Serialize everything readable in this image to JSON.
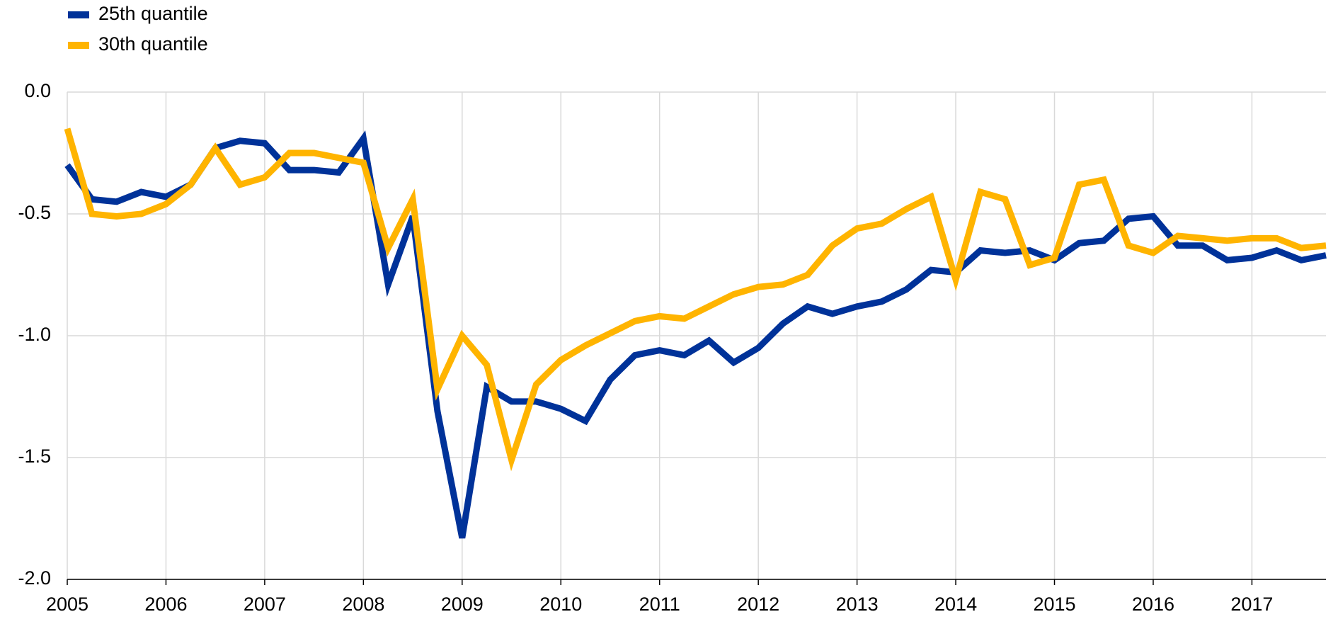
{
  "chart_data": {
    "type": "line",
    "x": [
      2005,
      2005.25,
      2005.5,
      2005.75,
      2006,
      2006.25,
      2006.5,
      2006.75,
      2007,
      2007.25,
      2007.5,
      2007.75,
      2008,
      2008.25,
      2008.5,
      2008.75,
      2009,
      2009.25,
      2009.5,
      2009.75,
      2010,
      2010.25,
      2010.5,
      2010.75,
      2011,
      2011.25,
      2011.5,
      2011.75,
      2012,
      2012.25,
      2012.5,
      2012.75,
      2013,
      2013.25,
      2013.5,
      2013.75,
      2014,
      2014.25,
      2014.5,
      2014.75,
      2015,
      2015.25,
      2015.5,
      2015.75,
      2016,
      2016.25,
      2016.5,
      2016.75,
      2017,
      2017.25,
      2017.5,
      2017.75
    ],
    "series": [
      {
        "name": "25th quantile",
        "color": "#003299",
        "values": [
          -0.3,
          -0.44,
          -0.45,
          -0.41,
          -0.43,
          -0.38,
          -0.23,
          -0.2,
          -0.21,
          -0.32,
          -0.32,
          -0.33,
          -0.19,
          -0.79,
          -0.51,
          -1.31,
          -1.83,
          -1.21,
          -1.27,
          -1.27,
          -1.3,
          -1.35,
          -1.18,
          -1.08,
          -1.06,
          -1.08,
          -1.02,
          -1.11,
          -1.05,
          -0.95,
          -0.88,
          -0.91,
          -0.88,
          -0.86,
          -0.81,
          -0.73,
          -0.74,
          -0.65,
          -0.66,
          -0.65,
          -0.69,
          -0.62,
          -0.61,
          -0.52,
          -0.51,
          -0.63,
          -0.63,
          -0.69,
          -0.68,
          -0.65,
          -0.69,
          -0.67
        ]
      },
      {
        "name": "30th quantile",
        "color": "#ffb400",
        "values": [
          -0.15,
          -0.5,
          -0.51,
          -0.5,
          -0.46,
          -0.38,
          -0.23,
          -0.38,
          -0.35,
          -0.25,
          -0.25,
          -0.27,
          -0.29,
          -0.64,
          -0.44,
          -1.22,
          -1.0,
          -1.12,
          -1.51,
          -1.2,
          -1.1,
          -1.04,
          -0.99,
          -0.94,
          -0.92,
          -0.93,
          -0.88,
          -0.83,
          -0.8,
          -0.79,
          -0.75,
          -0.63,
          -0.56,
          -0.54,
          -0.48,
          -0.43,
          -0.77,
          -0.41,
          -0.44,
          -0.71,
          -0.68,
          -0.38,
          -0.36,
          -0.63,
          -0.66,
          -0.59,
          -0.6,
          -0.61,
          -0.6,
          -0.6,
          -0.64,
          -0.63
        ]
      }
    ],
    "xlim": [
      2005,
      2017.75
    ],
    "xticks": [
      2005,
      2006,
      2007,
      2008,
      2009,
      2010,
      2011,
      2012,
      2013,
      2014,
      2015,
      2016,
      2017
    ],
    "ylim": [
      -2,
      0
    ],
    "yticks": [
      {
        "value": 0,
        "label": "0.0"
      },
      {
        "value": -0.5,
        "label": "-0.5"
      },
      {
        "value": -1,
        "label": "-1.0"
      },
      {
        "value": -1.5,
        "label": "-1.5"
      },
      {
        "value": -2,
        "label": "-2.0"
      }
    ],
    "grid": true,
    "legend": "top-left"
  }
}
